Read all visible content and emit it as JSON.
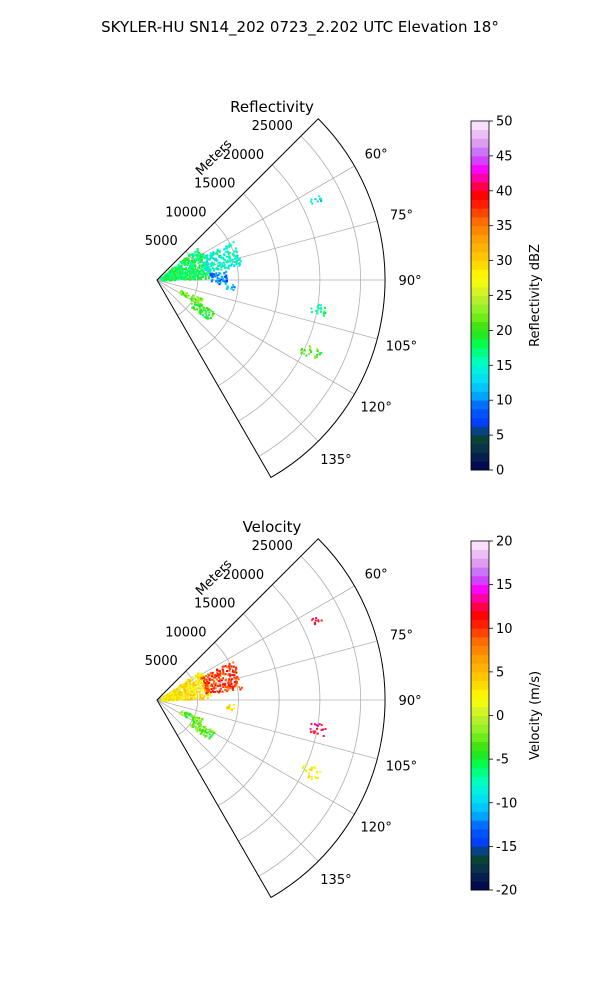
{
  "figure": {
    "suptitle": "SKYLER-HU  SN14_202  0723_2.202 UTC Elevation 18°"
  },
  "chart_data": [
    {
      "type": "heatmap",
      "projection": "polar-sector",
      "title": "Reflectivity",
      "range_axis_label": "Meters",
      "range_ticks": [
        5000,
        10000,
        15000,
        20000,
        25000
      ],
      "range_max": 28000,
      "azimuth_range_deg": [
        45,
        150
      ],
      "azimuth_ticks": [
        "60°",
        "75°",
        "90°",
        "105°",
        "120°",
        "135°"
      ],
      "azimuth_tick_values": [
        60,
        75,
        90,
        105,
        120,
        135
      ],
      "colorbar": {
        "label": "Reflectivity dBZ",
        "min": 0,
        "max": 50,
        "ticks": [
          0,
          5,
          10,
          15,
          20,
          25,
          30,
          35,
          40,
          45,
          50
        ]
      },
      "echo_regions": [
        {
          "az": [
            50,
            88
          ],
          "r": [
            500,
            6500
          ],
          "value": 18
        },
        {
          "az": [
            62,
            80
          ],
          "r": [
            6000,
            10500
          ],
          "value": 15
        },
        {
          "az": [
            82,
            93
          ],
          "r": [
            6500,
            8500
          ],
          "value": 9
        },
        {
          "az": [
            93,
            97
          ],
          "r": [
            8500,
            9500
          ],
          "value": 11
        },
        {
          "az": [
            112,
            120
          ],
          "r": [
            3000,
            6000
          ],
          "value": 22
        },
        {
          "az": [
            118,
            128
          ],
          "r": [
            5000,
            8000
          ],
          "value": 20
        },
        {
          "az": [
            98,
            102
          ],
          "r": [
            19000,
            21000
          ],
          "value": 17
        },
        {
          "az": [
            113,
            117
          ],
          "r": [
            19500,
            22000
          ],
          "value": 21
        },
        {
          "az": [
            62,
            64
          ],
          "r": [
            21000,
            22500
          ],
          "value": 14
        }
      ]
    },
    {
      "type": "heatmap",
      "projection": "polar-sector",
      "title": "Velocity",
      "range_axis_label": "Meters",
      "range_ticks": [
        5000,
        10000,
        15000,
        20000,
        25000
      ],
      "range_max": 28000,
      "azimuth_range_deg": [
        45,
        150
      ],
      "azimuth_ticks": [
        "60°",
        "75°",
        "90°",
        "105°",
        "120°",
        "135°"
      ],
      "azimuth_tick_values": [
        60,
        75,
        90,
        105,
        120,
        135
      ],
      "colorbar": {
        "label": "Velocity (m/s)",
        "min": -20,
        "max": 20,
        "ticks": [
          -20,
          -15,
          -10,
          -5,
          0,
          5,
          10,
          15,
          20
        ]
      },
      "echo_regions": [
        {
          "az": [
            55,
            88
          ],
          "r": [
            500,
            6500
          ],
          "value": 3
        },
        {
          "az": [
            62,
            82
          ],
          "r": [
            6000,
            10500
          ],
          "value": 10
        },
        {
          "az": [
            93,
            97
          ],
          "r": [
            8500,
            9500
          ],
          "value": 4
        },
        {
          "az": [
            112,
            120
          ],
          "r": [
            3000,
            6000
          ],
          "value": -3
        },
        {
          "az": [
            118,
            128
          ],
          "r": [
            5000,
            8000
          ],
          "value": -3
        },
        {
          "az": [
            98,
            102
          ],
          "r": [
            19000,
            21000
          ],
          "value": 12
        },
        {
          "az": [
            113,
            117
          ],
          "r": [
            19500,
            22000
          ],
          "value": 2
        },
        {
          "az": [
            62,
            64
          ],
          "r": [
            21000,
            22500
          ],
          "value": 11
        }
      ]
    }
  ]
}
